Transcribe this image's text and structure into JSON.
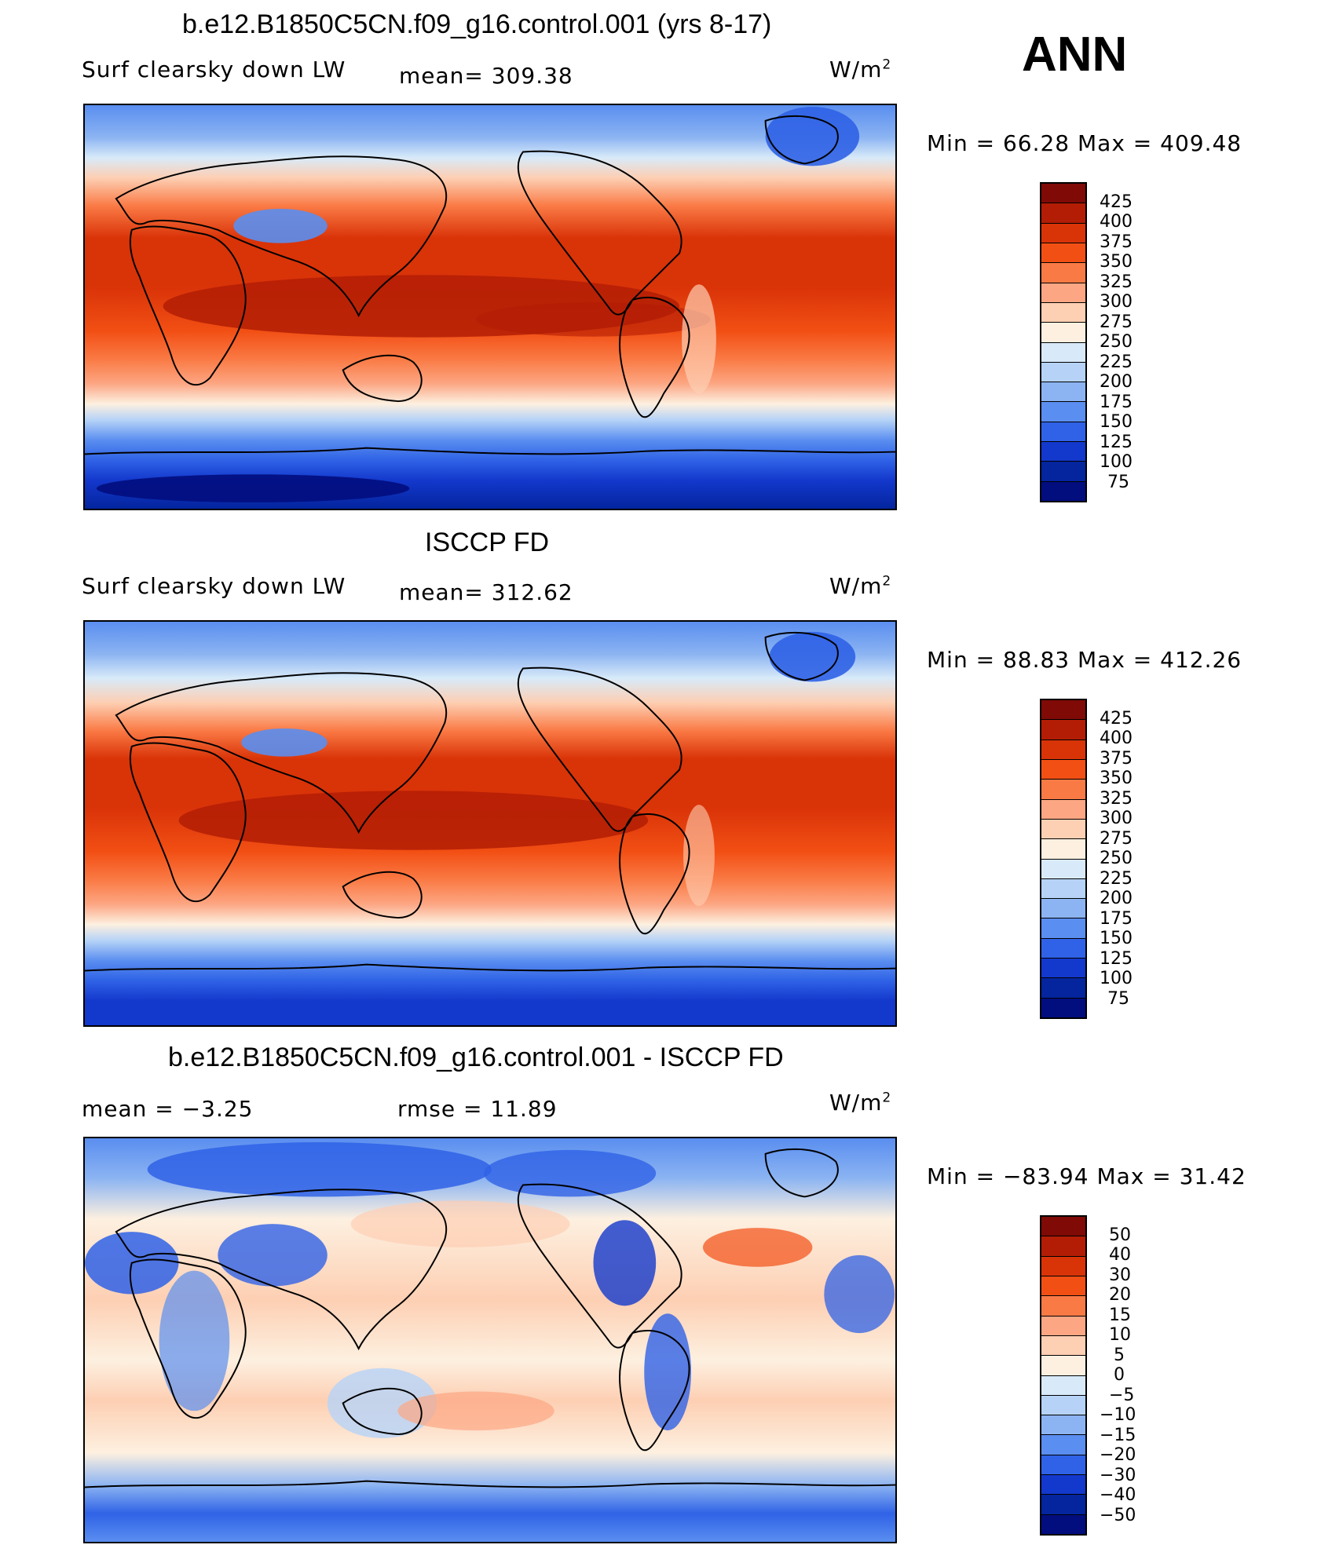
{
  "season": "ANN",
  "unit_base": "W/m",
  "unit_exp": "2",
  "panels": [
    {
      "title": "b.e12.B1850C5CN.f09_g16.control.001 (yrs 8-17)",
      "field": "Surf clearsky down LW",
      "stat1": "mean= 309.38",
      "stat2": "",
      "minmax": "Min =   66.28 Max = 409.48"
    },
    {
      "title": "ISCCP FD",
      "field": "Surf clearsky down LW",
      "stat1": "mean= 312.62",
      "stat2": "",
      "minmax": "Min =   88.83 Max = 412.26"
    },
    {
      "title": "b.e12.B1850C5CN.f09_g16.control.001 - ISCCP FD",
      "field": "",
      "stat1": "mean =   −3.25",
      "stat2": "rmse =   11.89",
      "minmax": "Min = −83.94 Max =   31.42"
    }
  ],
  "colorbars": {
    "absolute": {
      "labels": [
        "425",
        "400",
        "375",
        "350",
        "325",
        "300",
        "275",
        "250",
        "225",
        "200",
        "175",
        "150",
        "125",
        "100",
        "75"
      ],
      "colors": [
        "#7f0a06",
        "#b31d05",
        "#d93308",
        "#f24f14",
        "#fa7a45",
        "#fca683",
        "#fdcfb3",
        "#fdf0e0",
        "#d8eaf9",
        "#b6d3f7",
        "#8cb4f2",
        "#5a8ef0",
        "#2f62e6",
        "#1338cc",
        "#04259e",
        "#020d7e"
      ]
    },
    "difference": {
      "labels": [
        "50",
        "40",
        "30",
        "20",
        "15",
        "10",
        "5",
        "0",
        "−5",
        "−10",
        "−15",
        "−20",
        "−30",
        "−40",
        "−50"
      ],
      "colors": [
        "#7f0a06",
        "#b31d05",
        "#d93308",
        "#f24f14",
        "#fa7a45",
        "#fca683",
        "#fdcfb3",
        "#fdf0e0",
        "#d8eaf9",
        "#b6d3f7",
        "#8cb4f2",
        "#5a8ef0",
        "#2f62e6",
        "#1338cc",
        "#04259e",
        "#020d7e"
      ]
    }
  }
}
